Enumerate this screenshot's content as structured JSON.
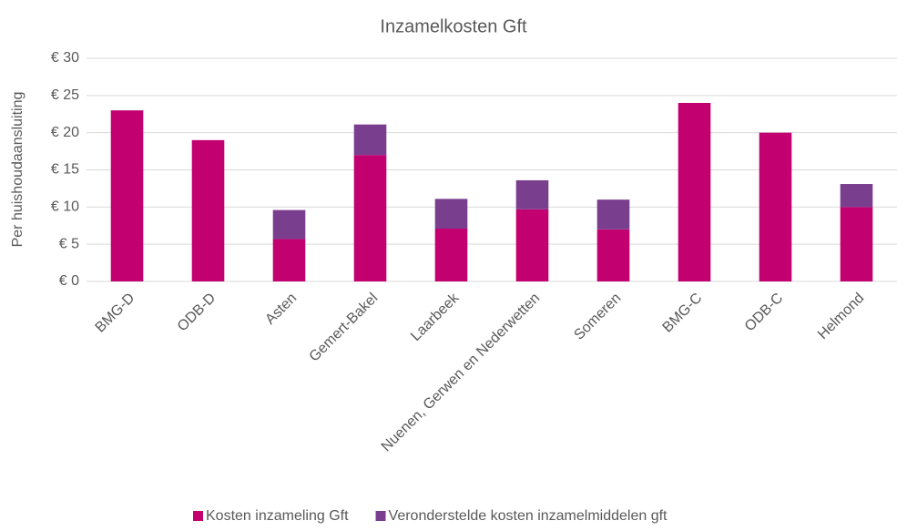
{
  "chart_data": {
    "type": "stacked_bar",
    "title": "Inzamelkosten Gft",
    "y_label": "Per huishoudaansluiting",
    "categories": [
      "BMG-D",
      "ODB-D",
      "Asten",
      "Gemert-Bakel",
      "Laarbeek",
      "Nuenen, Gerwen en Nederwetten",
      "Someren",
      "BMG-C",
      "ODB-C",
      "Helmond"
    ],
    "series": [
      {
        "name": "Kosten inzameling Gft",
        "color": "#c2006f",
        "values": [
          23,
          19,
          5.7,
          17,
          7.1,
          9.7,
          7,
          24,
          20,
          10
        ]
      },
      {
        "name": "Veronderstelde kosten inzamelmiddelen gft",
        "color": "#7a3e8f",
        "values": [
          null,
          null,
          3.9,
          4.1,
          4,
          3.9,
          4,
          null,
          null,
          3.1
        ]
      }
    ],
    "ylim": [
      0,
      30
    ],
    "yticks": [
      {
        "value": 0,
        "label": "€ 0"
      },
      {
        "value": 5,
        "label": "€ 5"
      },
      {
        "value": 10,
        "label": "€ 10"
      },
      {
        "value": 15,
        "label": "€ 15"
      },
      {
        "value": 20,
        "label": "€ 20"
      },
      {
        "value": 25,
        "label": "€ 25"
      },
      {
        "value": 30,
        "label": "€ 30"
      }
    ],
    "grid": true,
    "legend": "bottom"
  }
}
